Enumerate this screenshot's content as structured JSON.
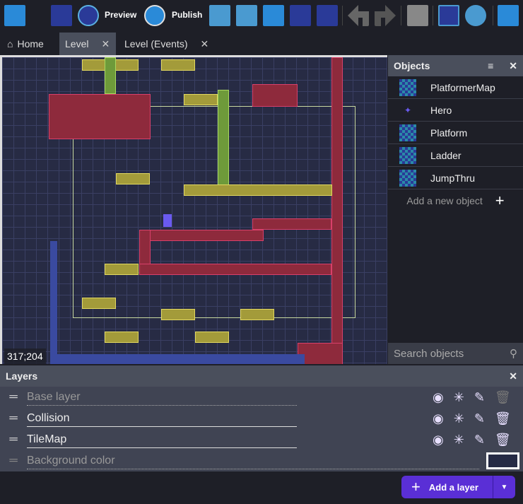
{
  "toolbar": {
    "preview_label": "Preview",
    "publish_label": "Publish",
    "icons": [
      "project-manager-icon",
      "debugger-icon",
      "preview-icon",
      "publish-icon",
      "objects-panel-icon",
      "object-groups-icon",
      "properties-icon",
      "instances-list-icon",
      "layers-icon",
      "undo-icon",
      "redo-icon",
      "mask-icon",
      "grid-icon",
      "zoom-reset-icon",
      "settings-icon"
    ]
  },
  "tabs": [
    {
      "label": "Home"
    },
    {
      "label": "Level",
      "active": true
    },
    {
      "label": "Level (Events)"
    }
  ],
  "canvas": {
    "cursor_coords": "317;204",
    "background_color": "#252a44"
  },
  "objects": {
    "title": "Objects",
    "items": [
      {
        "name": "PlatformerMap"
      },
      {
        "name": "Hero"
      },
      {
        "name": "Platform"
      },
      {
        "name": "Ladder"
      },
      {
        "name": "JumpThru"
      }
    ],
    "add_label": "Add a new object",
    "search_placeholder": "Search objects"
  },
  "layers": {
    "title": "Layers",
    "items": [
      {
        "name": "Base layer",
        "placeholder": true
      },
      {
        "name": "Collision"
      },
      {
        "name": "TileMap"
      }
    ],
    "background_label": "Background color",
    "add_label": "Add a layer"
  },
  "colors": {
    "accent": "#5a2fd6"
  }
}
